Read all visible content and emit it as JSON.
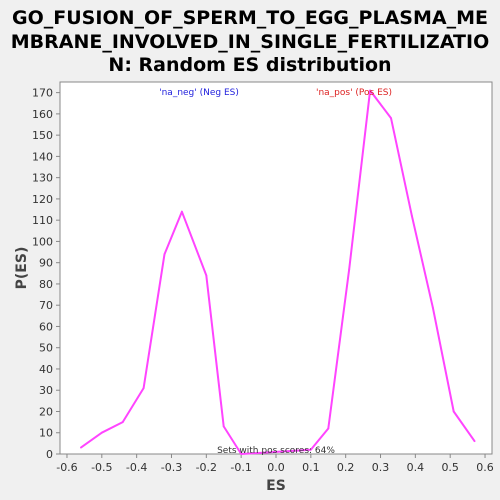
{
  "chart_data": {
    "type": "line",
    "title_lines": [
      "GO_FUSION_OF_SPERM_TO_EGG_PLASMA_ME",
      "MBRANE_INVOLVED_IN_SINGLE_FERTILIZATIO",
      "N: Random ES distribution"
    ],
    "xlabel": "ES",
    "ylabel": "P(ES)",
    "xlim": [
      -0.62,
      0.62
    ],
    "ylim": [
      0,
      175
    ],
    "xticks": [
      "-0.6",
      "-0.5",
      "-0.4",
      "-0.3",
      "-0.2",
      "-0.1",
      "0.0",
      "0.1",
      "0.2",
      "0.3",
      "0.4",
      "0.5",
      "0.6"
    ],
    "yticks": [
      "0",
      "10",
      "20",
      "30",
      "40",
      "50",
      "60",
      "70",
      "80",
      "90",
      "100",
      "110",
      "120",
      "130",
      "140",
      "150",
      "160",
      "170"
    ],
    "grid": false,
    "line_color": "#ff44ff",
    "series": [
      {
        "x": [
          -0.56,
          -0.5,
          -0.44,
          -0.38,
          -0.32,
          -0.27,
          -0.2,
          -0.15,
          -0.1,
          0.1,
          0.15,
          0.21,
          0.27,
          0.33,
          0.39,
          0.45,
          0.51,
          0.57
        ],
        "y": [
          3,
          10,
          15,
          31,
          94,
          114,
          84,
          13,
          0,
          2,
          12,
          87,
          171,
          158,
          112,
          69,
          20,
          6
        ]
      }
    ],
    "legend": [
      {
        "text": "'na_neg' (Neg ES)",
        "color": "#2222dd"
      },
      {
        "text": "'na_pos' (Pos ES)",
        "color": "#dd2222"
      }
    ],
    "annotation": "Sets with pos scores: 64%"
  }
}
